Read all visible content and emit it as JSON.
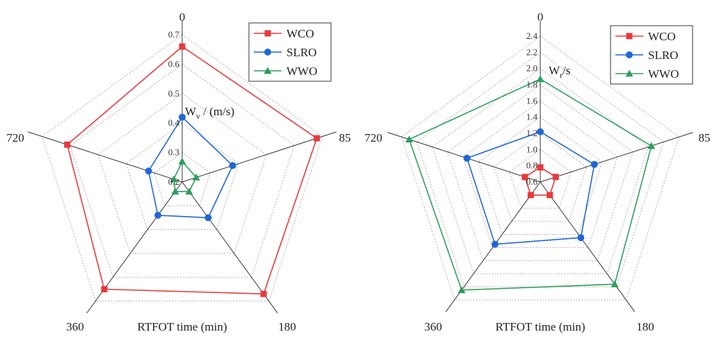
{
  "chart_data": [
    {
      "type": "radar",
      "xlabel": "RTFOT time (min)",
      "ylabel_main": "W",
      "ylabel_sub": "v",
      "ylabel_rest": " / (m/s)",
      "categories": [
        "0",
        "85",
        "180",
        "360",
        "720"
      ],
      "rmin": 0.2,
      "rmax": 0.7,
      "ticks": [
        "0.2",
        "0.3",
        "0.4",
        "0.5",
        "0.6",
        "0.7"
      ],
      "series": [
        {
          "name": "WCO",
          "marker": "square",
          "color": "#e8393b",
          "values": [
            0.66,
            0.68,
            0.67,
            0.65,
            0.61
          ]
        },
        {
          "name": "SLRO",
          "marker": "circle",
          "color": "#1f67d6",
          "values": [
            0.42,
            0.38,
            0.35,
            0.34,
            0.32
          ]
        },
        {
          "name": "WWO",
          "marker": "triangle",
          "color": "#2e9e5c",
          "values": [
            0.27,
            0.25,
            0.24,
            0.24,
            0.23
          ]
        }
      ]
    },
    {
      "type": "radar",
      "xlabel": "RTFOT time (min)",
      "ylabel_main": "W",
      "ylabel_sub": "r",
      "ylabel_rest": "/s",
      "categories": [
        "0",
        "85",
        "180",
        "360",
        "720"
      ],
      "rmin": 0.6,
      "rmax": 2.4,
      "ticks": [
        "0.6",
        "0.8",
        "1.0",
        "1.2",
        "1.4",
        "1.6",
        "1.8",
        "2.0",
        "2.2",
        "2.4"
      ],
      "series": [
        {
          "name": "WCO",
          "marker": "square",
          "color": "#e8393b",
          "values": [
            0.78,
            0.8,
            0.8,
            0.8,
            0.8
          ]
        },
        {
          "name": "SLRO",
          "marker": "circle",
          "color": "#1f67d6",
          "values": [
            1.22,
            1.3,
            1.45,
            1.55,
            1.55
          ]
        },
        {
          "name": "WWO",
          "marker": "triangle",
          "color": "#2e9e5c",
          "values": [
            1.87,
            2.04,
            2.16,
            2.25,
            2.3
          ]
        }
      ]
    }
  ]
}
